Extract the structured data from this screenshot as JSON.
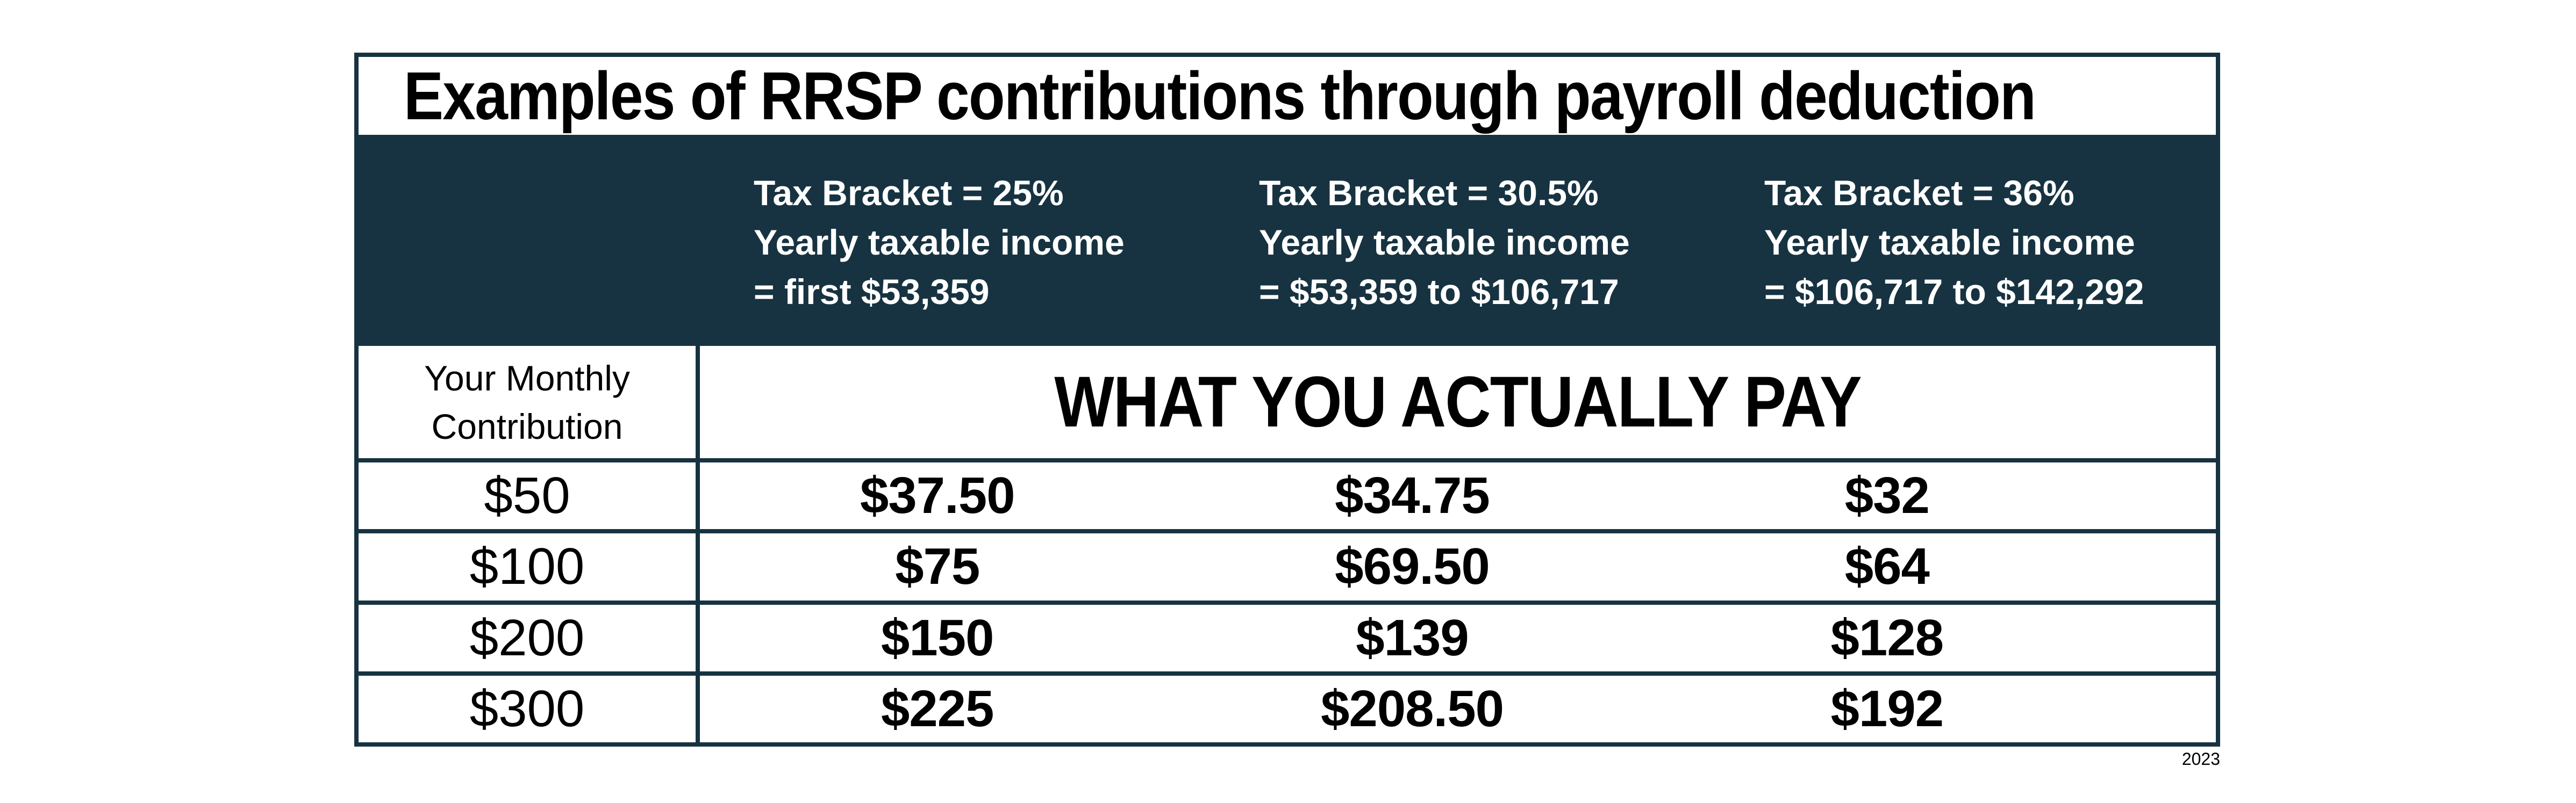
{
  "chart_data": {
    "type": "table",
    "title": "Examples of RRSP contributions through payroll deduction",
    "bracket_columns": [
      {
        "tax_bracket": "Tax Bracket = 25%",
        "income_line1": "Yearly taxable income",
        "income_line2": "= first $53,359"
      },
      {
        "tax_bracket": "Tax Bracket = 30.5%",
        "income_line1": "Yearly taxable income",
        "income_line2": "= $53,359 to $106,717"
      },
      {
        "tax_bracket": "Tax Bracket = 36%",
        "income_line1": "Yearly taxable income",
        "income_line2": "= $106,717 to $142,292"
      }
    ],
    "row_label_header": {
      "line1": "Your Monthly",
      "line2": "Contribution"
    },
    "pay_banner": "WHAT YOU ACTUALLY PAY",
    "rows": [
      {
        "contribution": "$50",
        "pay_25": "$37.50",
        "pay_30_5": "$34.75",
        "pay_36": "$32"
      },
      {
        "contribution": "$100",
        "pay_25": "$75",
        "pay_30_5": "$69.50",
        "pay_36": "$64"
      },
      {
        "contribution": "$200",
        "pay_25": "$150",
        "pay_30_5": "$139",
        "pay_36": "$128"
      },
      {
        "contribution": "$300",
        "pay_25": "$225",
        "pay_30_5": "$208.50",
        "pay_36": "$192"
      }
    ],
    "footnote_year": "2023"
  },
  "colors": {
    "header_bg": "#173341",
    "border": "#173341",
    "header_text": "#ffffff",
    "body_text": "#000000",
    "page_bg": "#ffffff"
  }
}
